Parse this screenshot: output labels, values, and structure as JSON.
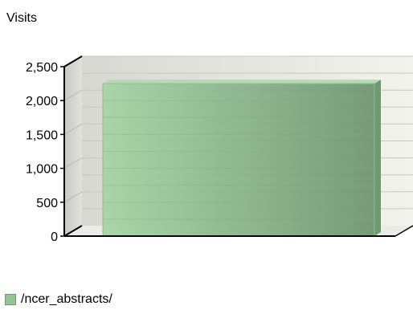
{
  "chart_data": {
    "type": "bar",
    "title": "",
    "ylabel": "Visits",
    "xlabel": "",
    "categories": [
      "/ncer_abstracts/"
    ],
    "series": [
      {
        "name": "/ncer_abstracts/",
        "values": [
          2250
        ]
      }
    ],
    "ylim": [
      0,
      2500
    ],
    "yticks": [
      0,
      500,
      1000,
      1500,
      2000,
      2500
    ],
    "ytick_labels": [
      "0",
      "500",
      "1,000",
      "1,500",
      "2,000",
      "2,500"
    ],
    "grid": true,
    "legend_position": "bottom-left",
    "colors": {
      "bar": "#93c593",
      "bar_dark": "#6f9a6f",
      "wall": "#e6e6e0",
      "grid": "#c8c8c0"
    }
  }
}
